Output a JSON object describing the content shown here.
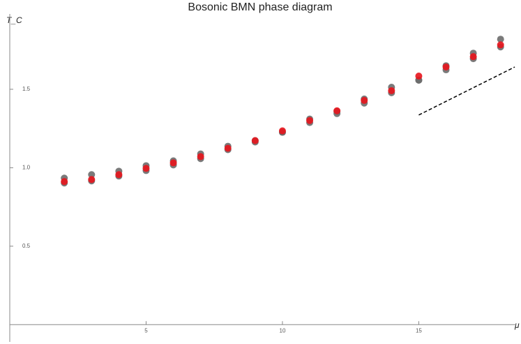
{
  "chart_data": {
    "type": "scatter",
    "title": "Bosonic BMN phase diagram",
    "x_label": "μ",
    "y_label": "T_C",
    "xlim": [
      0,
      18.57
    ],
    "ylim": [
      -0.11,
      1.98
    ],
    "xticks": [
      5,
      10,
      15
    ],
    "yticks": [
      0.5,
      {
        "value": 1.0,
        "label": "1.0"
      },
      1.5
    ],
    "series": [
      {
        "color": "#6b6b6b",
        "marker": "circle",
        "x": [
          2,
          3,
          4,
          5,
          6,
          7,
          8,
          9,
          10,
          11,
          12,
          13,
          14,
          15,
          16,
          17,
          18
        ],
        "values": [
          0.934,
          0.956,
          0.978,
          1.013,
          1.044,
          1.088,
          1.137,
          1.173,
          1.226,
          1.31,
          1.358,
          1.438,
          1.513,
          1.558,
          1.65,
          1.73,
          1.819
        ]
      },
      {
        "color": "#6b6b6b",
        "marker": "circle",
        "x": [
          2,
          3,
          4,
          5,
          6,
          7,
          8,
          9,
          10,
          11,
          12,
          13,
          14,
          15,
          16,
          17,
          18
        ],
        "values": [
          0.903,
          0.916,
          0.947,
          0.982,
          1.018,
          1.058,
          1.115,
          1.164,
          1.226,
          1.288,
          1.345,
          1.412,
          1.478,
          1.558,
          1.624,
          1.695,
          1.77
        ]
      },
      {
        "color": "#e8141c",
        "marker": "circle",
        "x": [
          2,
          3,
          4,
          5,
          6,
          7,
          8,
          9,
          10,
          11,
          12,
          13,
          14,
          15,
          16,
          17,
          18
        ],
        "values": [
          0.912,
          0.925,
          0.956,
          0.996,
          1.031,
          1.071,
          1.124,
          1.173,
          1.235,
          1.301,
          1.363,
          1.429,
          1.491,
          1.584,
          1.642,
          1.708,
          1.783
        ]
      },
      {
        "color": "#000000",
        "marker": "dashed-line",
        "x": [
          15,
          18.52
        ],
        "values": [
          1.336,
          1.642
        ]
      }
    ]
  }
}
